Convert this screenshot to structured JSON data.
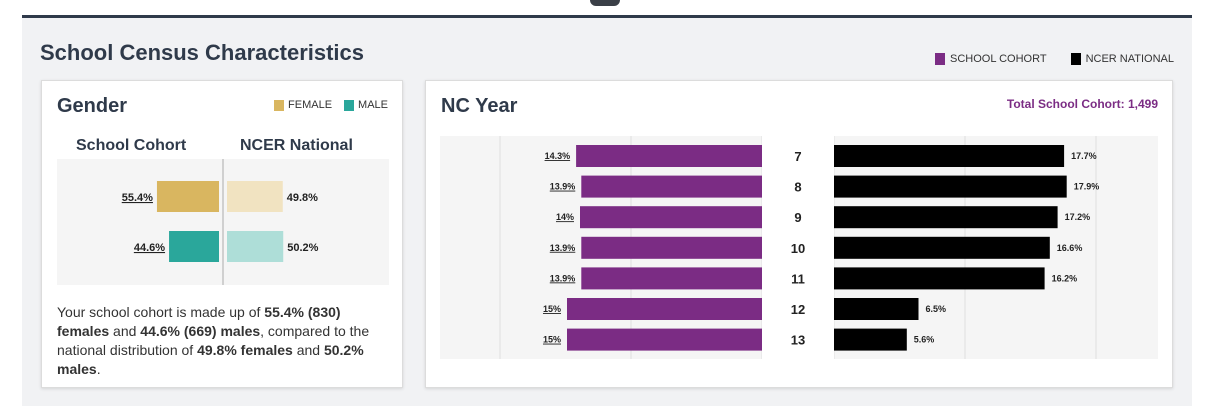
{
  "section": {
    "title": "School Census Characteristics",
    "legend": [
      {
        "label": "SCHOOL COHORT",
        "color": "#7b2c84"
      },
      {
        "label": "NCER NATIONAL",
        "color": "#000000"
      }
    ]
  },
  "gender": {
    "title": "Gender",
    "legend": [
      {
        "label": "FEMALE",
        "color": "#d9b660"
      },
      {
        "label": "MALE",
        "color": "#2aa79b"
      }
    ],
    "col_school": "School Cohort",
    "col_national": "NCER National",
    "desc": {
      "p1": "Your school cohort is made up of ",
      "b1": "55.4% (830) females",
      "p2": " and ",
      "b2": "44.6% (669) males",
      "p3": ", compared to the national distribution of ",
      "b3": "49.8% females",
      "p4": " and ",
      "b4": "50.2% males",
      "p5": "."
    }
  },
  "nc": {
    "title": "NC Year",
    "total_label": "Total School Cohort: 1,499"
  },
  "chart_data": [
    {
      "type": "bar",
      "title": "Gender",
      "categories": [
        "FEMALE",
        "MALE"
      ],
      "series": [
        {
          "name": "School Cohort",
          "values": [
            55.4,
            44.6
          ],
          "labels": [
            "55.4%",
            "44.6%"
          ],
          "colors": [
            "#d9b660",
            "#2aa79b"
          ]
        },
        {
          "name": "NCER National",
          "values": [
            49.8,
            50.2
          ],
          "labels": [
            "49.8%",
            "50.2%"
          ],
          "colors": [
            "#f1e3c1",
            "#aeded8"
          ]
        }
      ]
    },
    {
      "type": "bar",
      "title": "NC Year",
      "categories": [
        "7",
        "8",
        "9",
        "10",
        "11",
        "12",
        "13"
      ],
      "series": [
        {
          "name": "SCHOOL COHORT",
          "values": [
            14.3,
            13.9,
            14,
            13.9,
            13.9,
            15,
            15
          ],
          "labels": [
            "14.3%",
            "13.9%",
            "14%",
            "13.9%",
            "13.9%",
            "15%",
            "15%"
          ],
          "color": "#7b2c84"
        },
        {
          "name": "NCER NATIONAL",
          "values": [
            17.7,
            17.9,
            17.2,
            16.6,
            16.2,
            6.5,
            5.6
          ],
          "labels": [
            "17.7%",
            "17.9%",
            "17.2%",
            "16.6%",
            "16.2%",
            "6.5%",
            "5.6%"
          ],
          "color": "#000000"
        }
      ]
    }
  ]
}
